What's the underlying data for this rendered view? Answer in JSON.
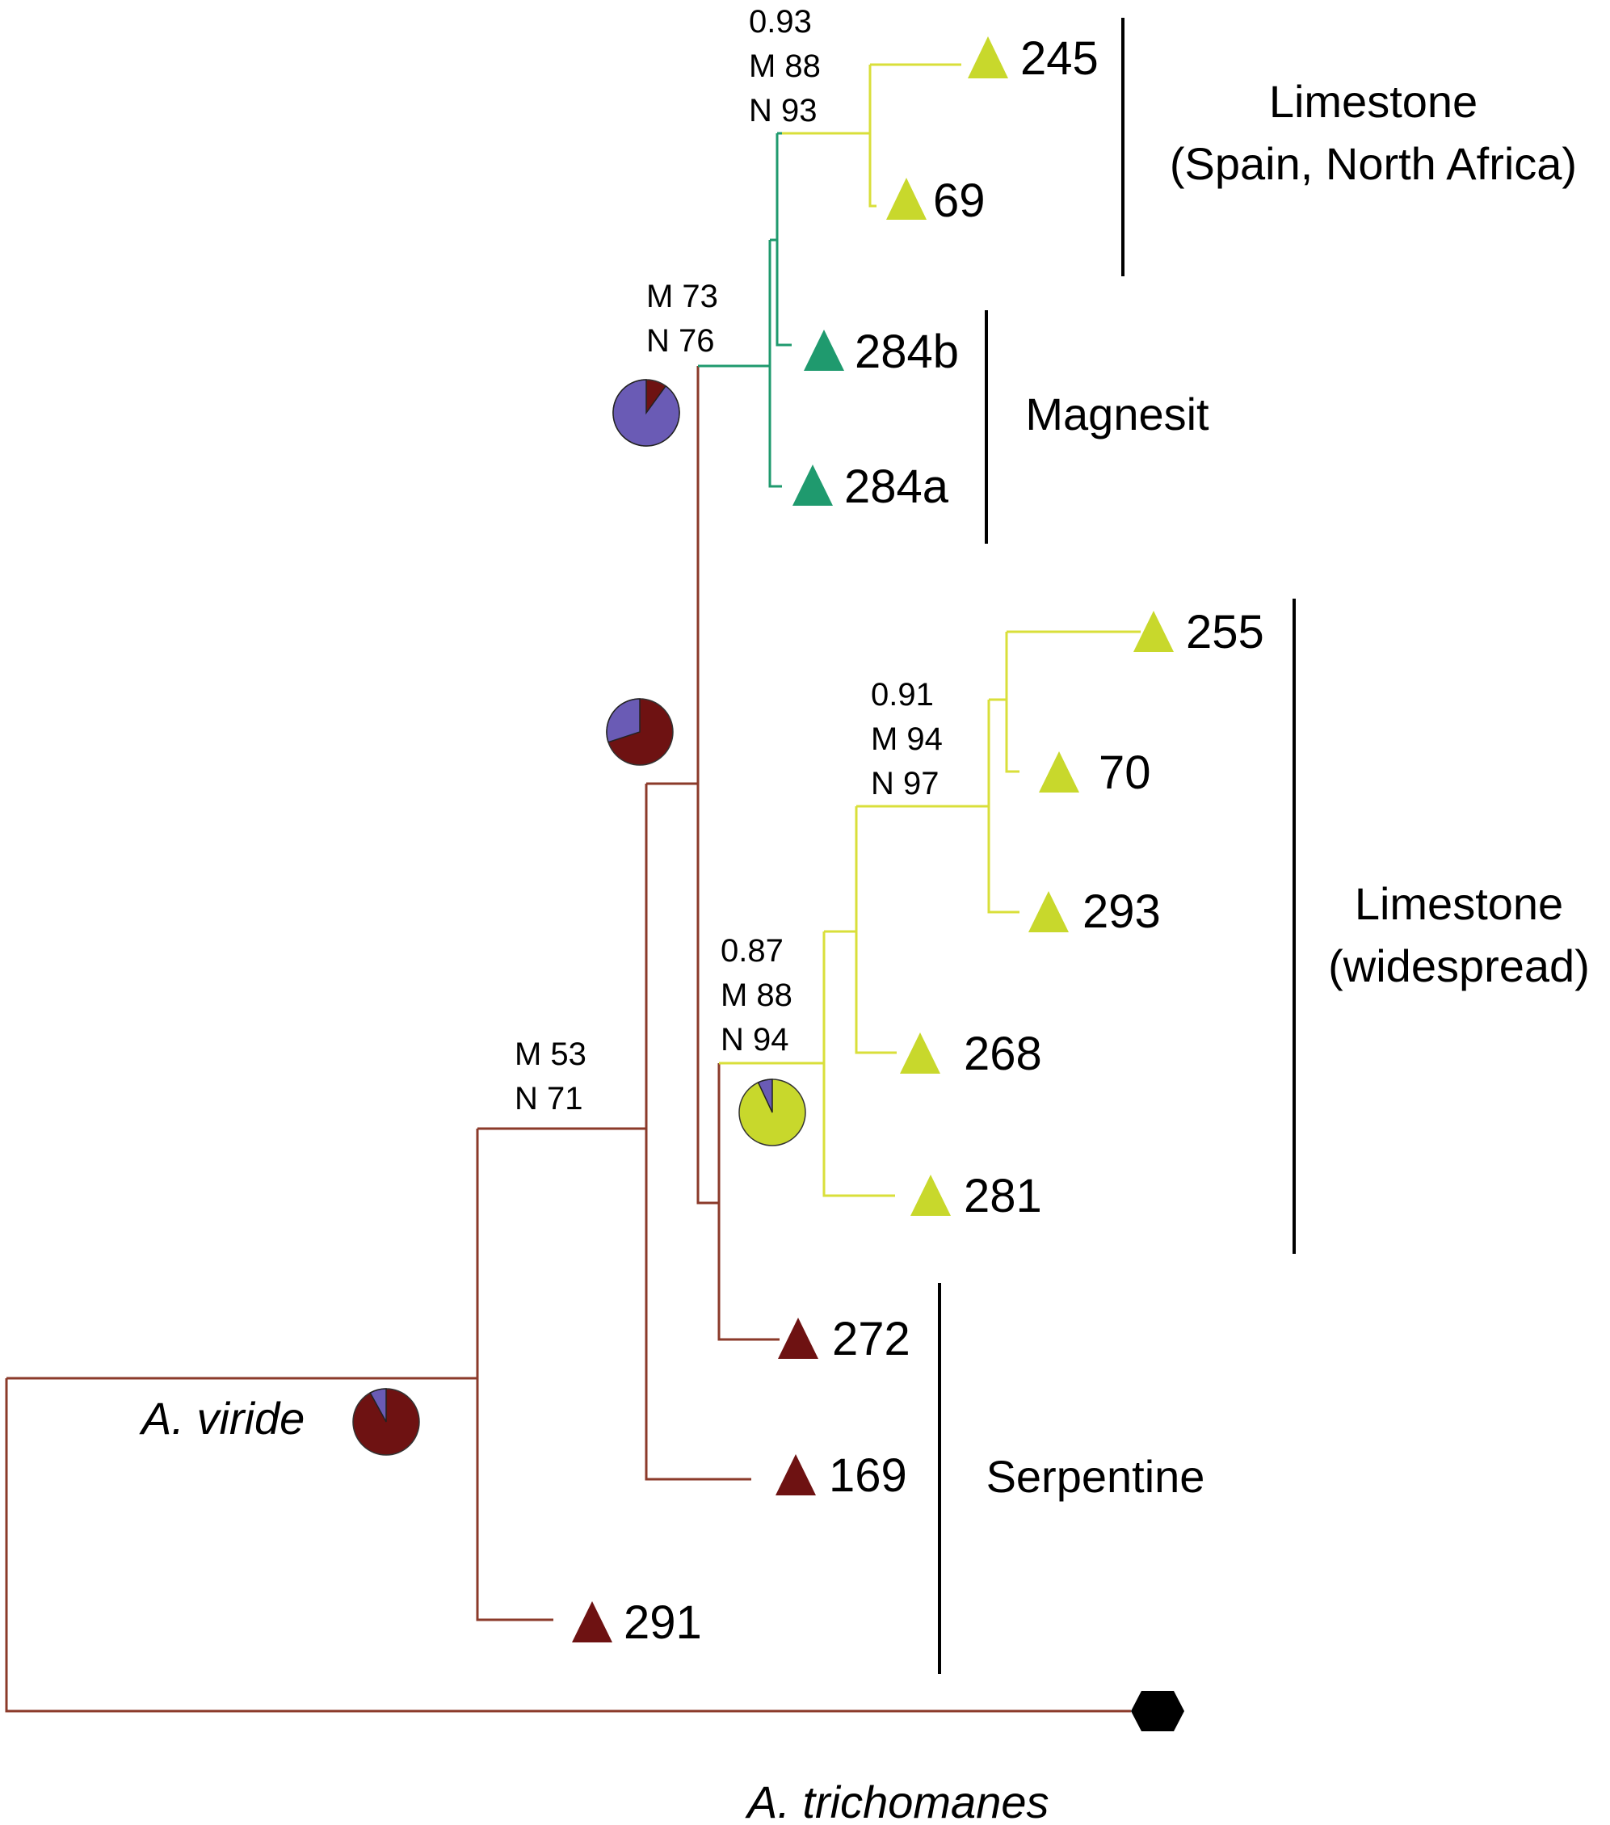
{
  "colors": {
    "serpentine": "#6e1212",
    "serpentine_branch": "#8b3a2a",
    "magnesit": "#1f9a6e",
    "limestone": "#c8d82c",
    "limestone_branch": "#d9df3a",
    "pie_blue": "#6a5bb5",
    "outgroup": "#000000"
  },
  "tips": {
    "t245": "245",
    "t69": "69",
    "t284b": "284b",
    "t284a": "284a",
    "t255": "255",
    "t70": "70",
    "t293": "293",
    "t268": "268",
    "t281": "281",
    "t272": "272",
    "t169": "169",
    "t291": "291"
  },
  "supports": {
    "node_limestone_spain": [
      "0.93",
      "M 88",
      "N 93"
    ],
    "node_magnesit_limestone": [
      "M 73",
      "N 76"
    ],
    "node_limestone_wide_inner": [
      "0.91",
      "M 94",
      "N 97"
    ],
    "node_limestone_wide": [
      "0.87",
      "M 88",
      "N 94"
    ],
    "node_basal": [
      "M 53",
      "N 71"
    ]
  },
  "groups": {
    "limestone_spain_line1": "Limestone",
    "limestone_spain_line2": "(Spain, North Africa)",
    "magnesit": "Magnesit",
    "limestone_wide_line1": "Limestone",
    "limestone_wide_line2": "(widespread)",
    "serpentine": "Serpentine"
  },
  "taxa": {
    "ingroup": "A. viride",
    "outgroup": "A. trichomanes"
  },
  "pies": {
    "pie_root_viride": {
      "blue": 0.08
    },
    "pie_serp_node": {
      "blue": 0.3
    },
    "pie_magnesit_node": {
      "blue": 0.9
    },
    "pie_limestone_node": {
      "blue": 0.07
    }
  }
}
